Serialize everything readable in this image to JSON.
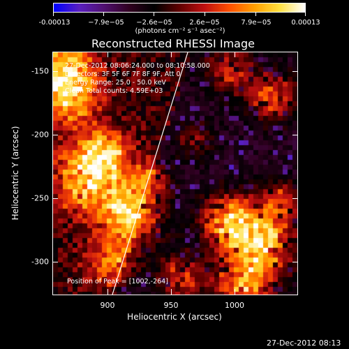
{
  "colorbar": {
    "tick_labels": [
      "-0.00013",
      "−7.9e−05",
      "−2.6e−05",
      "2.6e−05",
      "7.9e−05",
      "0.00013"
    ],
    "unit_label": "(photons cm⁻² s⁻¹ asec⁻²)",
    "colors": [
      "#0000ff",
      "#5a20c0",
      "#501070",
      "#300020",
      "#000000",
      "#600000",
      "#c01010",
      "#ff5000",
      "#ffa000",
      "#ffe040",
      "#ffffff"
    ]
  },
  "plot": {
    "title": "Reconstructed RHESSI Image",
    "overlay_lines": [
      "27-Dec-2012 08:06:24.000 to 08:10:58.000",
      "Detectors: 3F 5F 6F 7F 8F 9F, Att 0",
      "Energy Range: 25.0 - 50.0 keV",
      "Clean     Total counts: 4.59E+03"
    ],
    "peak_label": "Position of Peak = [1002,-264]",
    "xlabel": "Heliocentric X (arcsec)",
    "ylabel": "Heliocentric Y (arcsec)",
    "xticks": [
      "900",
      "950",
      "1000"
    ],
    "yticks": [
      "-150",
      "-200",
      "-250",
      "-300"
    ]
  },
  "footer": {
    "date": "27-Dec-2012 08:13"
  }
}
